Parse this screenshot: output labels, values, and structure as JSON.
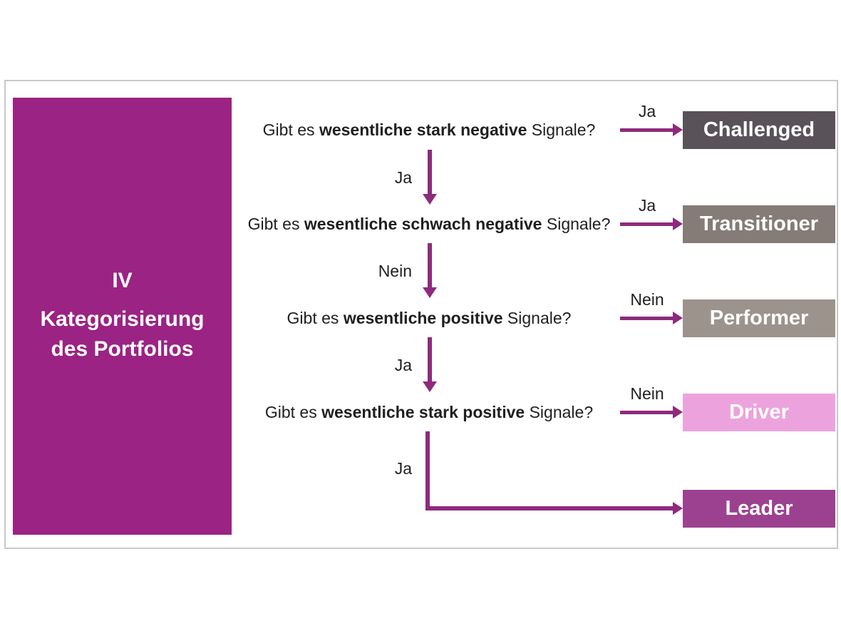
{
  "panel": {
    "numeral": "IV",
    "title_line1": "Kategorisierung",
    "title_line2": "des Portfolios",
    "bg": "#9B2383"
  },
  "colors": {
    "arrow": "#8E2A7D",
    "frame_border": "#C8C8C8"
  },
  "flow": {
    "steps": [
      {
        "q_prefix": "Gibt es ",
        "q_bold": "wesentliche stark negative",
        "q_suffix": " Signale?",
        "right_label": "Ja",
        "down_label": "Ja",
        "result": "Challenged",
        "result_bg": "#595359"
      },
      {
        "q_prefix": "Gibt es ",
        "q_bold": "wesentliche schwach negative",
        "q_suffix": " Signale?",
        "right_label": "Ja",
        "down_label": "Nein",
        "result": "Transitioner",
        "result_bg": "#857C77"
      },
      {
        "q_prefix": "Gibt es ",
        "q_bold": "wesentliche positive",
        "q_suffix": " Signale?",
        "right_label": "Nein",
        "down_label": "Ja",
        "result": "Performer",
        "result_bg": "#9C938C"
      },
      {
        "q_prefix": "Gibt es ",
        "q_bold": "wesentliche stark positive",
        "q_suffix": " Signale?",
        "right_label": "Nein",
        "down_label": "Ja",
        "result": "Driver",
        "result_bg": "#ECA3DD"
      }
    ],
    "final": {
      "label": "Leader",
      "bg": "#9C4190"
    }
  }
}
